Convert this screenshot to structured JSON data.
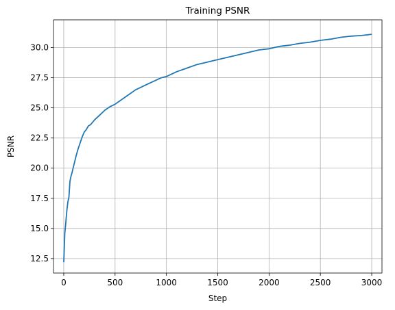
{
  "chart_data": {
    "type": "line",
    "title": "Training PSNR",
    "xlabel": "Step",
    "ylabel": "PSNR",
    "xlim": [
      -100,
      3100
    ],
    "ylim": [
      11.3,
      32.3
    ],
    "xticks": [
      0,
      500,
      1000,
      1500,
      2000,
      2500,
      3000
    ],
    "yticks": [
      12.5,
      15.0,
      17.5,
      20.0,
      22.5,
      25.0,
      27.5,
      30.0
    ],
    "xtick_labels": [
      "0",
      "500",
      "1000",
      "1500",
      "2000",
      "2500",
      "3000"
    ],
    "ytick_labels": [
      "12.5",
      "15.0",
      "17.5",
      "20.0",
      "22.5",
      "25.0",
      "27.5",
      "30.0"
    ],
    "grid": true,
    "series": [
      {
        "color": "#1f77b4",
        "x": [
          0,
          10,
          20,
          30,
          40,
          50,
          60,
          70,
          80,
          100,
          120,
          140,
          160,
          180,
          200,
          220,
          240,
          260,
          280,
          300,
          350,
          400,
          450,
          500,
          550,
          600,
          650,
          700,
          750,
          800,
          850,
          900,
          950,
          1000,
          1100,
          1200,
          1300,
          1400,
          1500,
          1600,
          1700,
          1800,
          1900,
          2000,
          2100,
          2200,
          2300,
          2400,
          2500,
          2600,
          2700,
          2800,
          2900,
          3000
        ],
        "y": [
          12.2,
          14.6,
          15.5,
          16.5,
          17.2,
          17.6,
          18.9,
          19.3,
          19.6,
          20.3,
          21.0,
          21.6,
          22.1,
          22.6,
          23.0,
          23.2,
          23.5,
          23.6,
          23.8,
          24.0,
          24.4,
          24.8,
          25.1,
          25.3,
          25.6,
          25.9,
          26.2,
          26.5,
          26.7,
          26.9,
          27.1,
          27.3,
          27.5,
          27.6,
          28.0,
          28.3,
          28.6,
          28.8,
          29.0,
          29.2,
          29.4,
          29.6,
          29.8,
          29.9,
          30.1,
          30.2,
          30.35,
          30.45,
          30.6,
          30.7,
          30.85,
          30.95,
          31.0,
          31.1
        ]
      }
    ]
  }
}
